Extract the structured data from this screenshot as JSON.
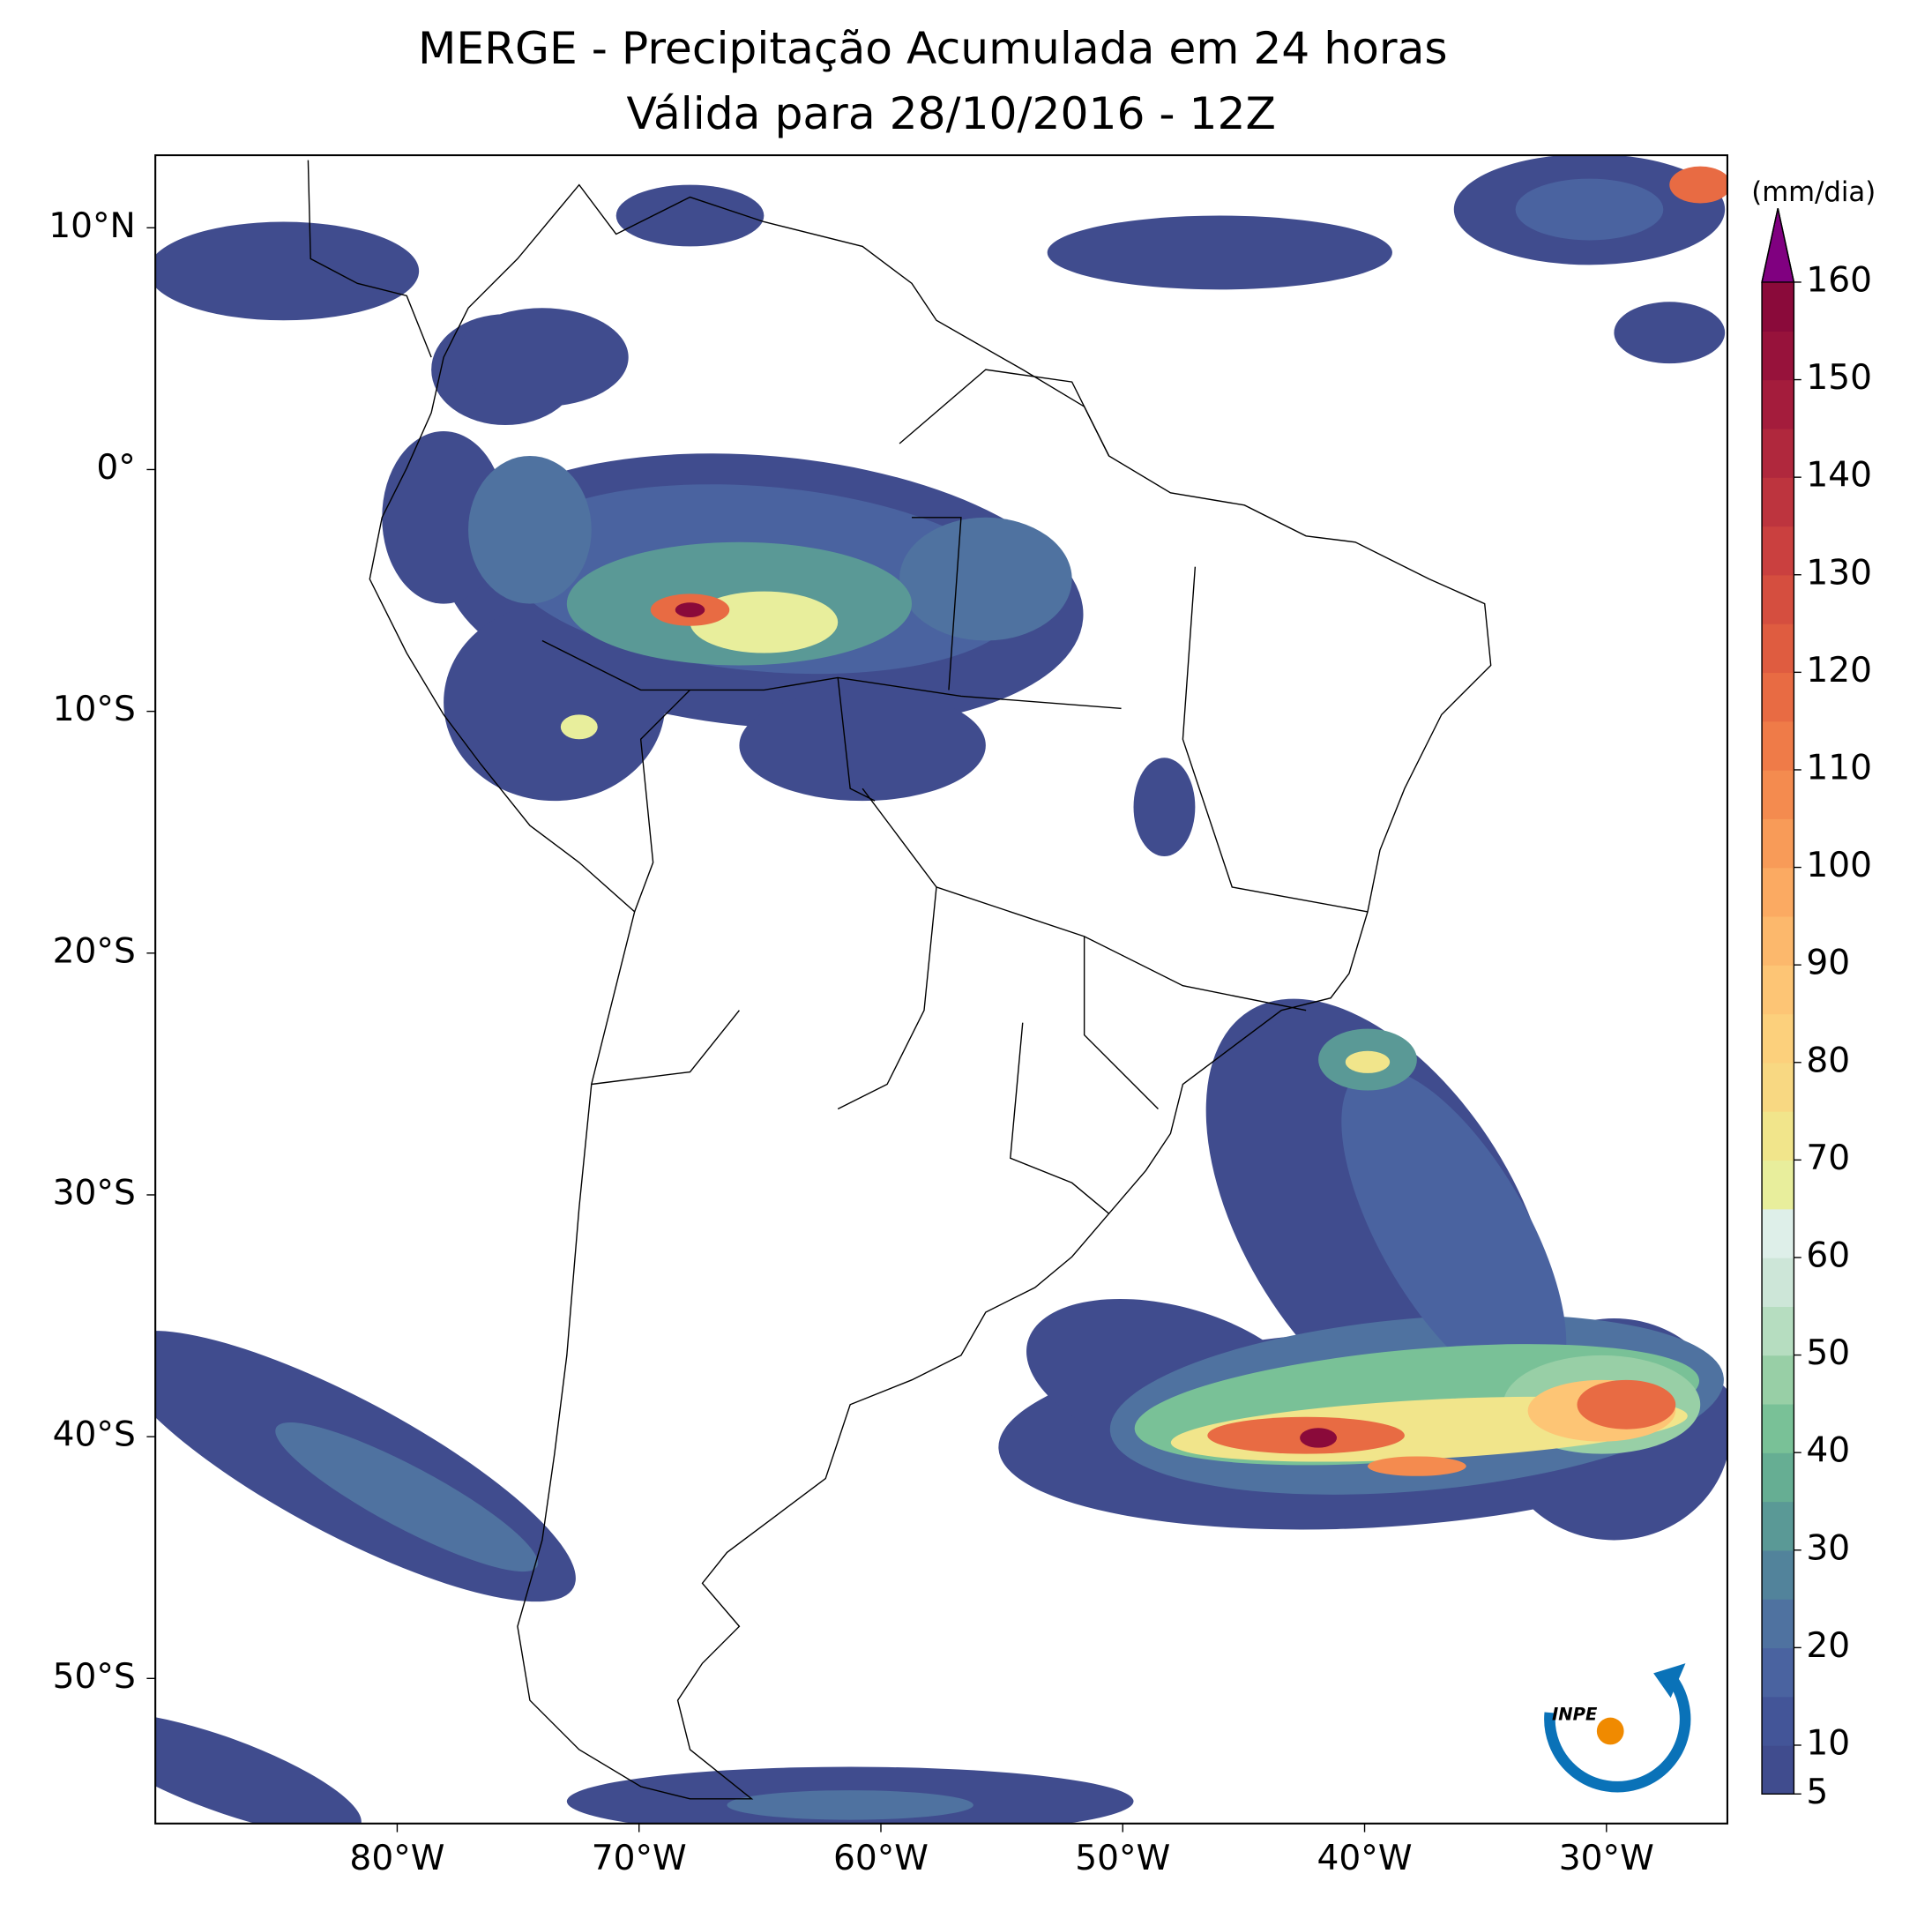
{
  "chart_data": {
    "type": "map",
    "title": "MERGE - Precipitação Acumulada em 24 horas",
    "subtitle": "Válida para 28/10/2016 - 12Z",
    "xlim": [
      -90,
      -25
    ],
    "ylim": [
      -56,
      13
    ],
    "xticks": [
      {
        "value": -80,
        "label": "80°W"
      },
      {
        "value": -70,
        "label": "70°W"
      },
      {
        "value": -60,
        "label": "60°W"
      },
      {
        "value": -50,
        "label": "50°W"
      },
      {
        "value": -40,
        "label": "40°W"
      },
      {
        "value": -30,
        "label": "30°W"
      }
    ],
    "yticks": [
      {
        "value": 10,
        "label": "10°N"
      },
      {
        "value": 0,
        "label": "0°"
      },
      {
        "value": -10,
        "label": "10°S"
      },
      {
        "value": -20,
        "label": "20°S"
      },
      {
        "value": -30,
        "label": "30°S"
      },
      {
        "value": -40,
        "label": "40°S"
      },
      {
        "value": -50,
        "label": "50°S"
      }
    ],
    "colorbar": {
      "label": "(mm/dia)",
      "levels": [
        5,
        10,
        15,
        20,
        25,
        30,
        35,
        40,
        45,
        50,
        55,
        60,
        65,
        70,
        75,
        80,
        85,
        90,
        95,
        100,
        105,
        110,
        115,
        120,
        125,
        130,
        135,
        140,
        145,
        150,
        155,
        160
      ],
      "colors": [
        "#404c8e",
        "#435598",
        "#4a63a0",
        "#4f72a0",
        "#52839b",
        "#5a9996",
        "#66ae93",
        "#79c197",
        "#98cfa6",
        "#b6ddc0",
        "#cde6d8",
        "#deefe9",
        "#e8ee9c",
        "#f1e58b",
        "#f8d882",
        "#fcd07c",
        "#fdc575",
        "#fcb86c",
        "#fbaa62",
        "#f89b58",
        "#f48b4f",
        "#ef7b48",
        "#e86b43",
        "#df5c40",
        "#d54e3f",
        "#ca403f",
        "#bd343e",
        "#b0283d",
        "#a41c3c",
        "#97123b",
        "#8a0a3a"
      ],
      "extend_color": "#800080",
      "ticks": [
        5,
        10,
        20,
        30,
        40,
        50,
        60,
        70,
        80,
        90,
        100,
        110,
        120,
        130,
        140,
        150,
        160
      ]
    },
    "logo": "INPE"
  }
}
